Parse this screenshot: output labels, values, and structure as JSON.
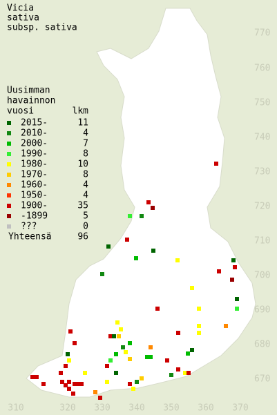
{
  "title": [
    "Vicia",
    "sativa",
    "subsp. sativa"
  ],
  "legend": {
    "header": [
      "Uusimman",
      "havainnon",
      "vuosi"
    ],
    "count_header": "lkm",
    "items": [
      {
        "label": "2015-",
        "count": 11,
        "color": "#006400"
      },
      {
        "label": "2010-",
        "count": 4,
        "color": "#118811"
      },
      {
        "label": "2000-",
        "count": 7,
        "color": "#00bb00"
      },
      {
        "label": "1990-",
        "count": 8,
        "color": "#33ee33"
      },
      {
        "label": "1980-",
        "count": 10,
        "color": "#ffff00"
      },
      {
        "label": "1970-",
        "count": 8,
        "color": "#ffcc00"
      },
      {
        "label": "1960-",
        "count": 4,
        "color": "#ff8800"
      },
      {
        "label": "1950-",
        "count": 4,
        "color": "#ff3300"
      },
      {
        "label": "1900-",
        "count": 35,
        "color": "#cc0000"
      },
      {
        "label": "-1899",
        "count": 5,
        "color": "#990000"
      },
      {
        "label": "???",
        "count": 0,
        "color": "#c0c0c0"
      }
    ],
    "total_label": "Yhteensä",
    "total": 96
  },
  "grid": {
    "north": [
      770,
      760,
      750,
      740,
      730,
      720,
      710,
      700,
      690,
      680,
      670
    ],
    "east": [
      310,
      320,
      330,
      340,
      350,
      360,
      370
    ]
  }
}
